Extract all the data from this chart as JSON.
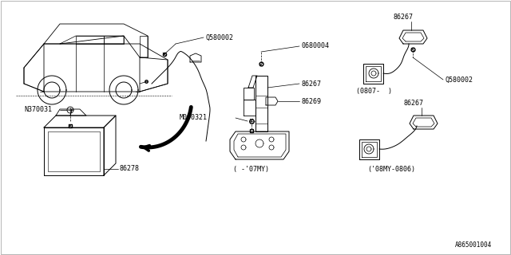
{
  "bg_color": "#ffffff",
  "line_color": "#000000",
  "text_color": "#000000",
  "diagram_id": "A865001004",
  "labels": {
    "Q580002_top": "Q580002",
    "N370031": "N370031",
    "86278": "86278",
    "0680004": "0680004",
    "86267_center": "86267",
    "86269": "86269",
    "M000321": "M000321",
    "label_07my": "( -'07MY)",
    "86267_tr": "86267",
    "Q580002_tr": "Q580002",
    "label_0807": "(0807-  )",
    "86267_br": "86267",
    "label_08my": "('08MY-0806)"
  },
  "lw": 0.7,
  "fs": 6.0
}
